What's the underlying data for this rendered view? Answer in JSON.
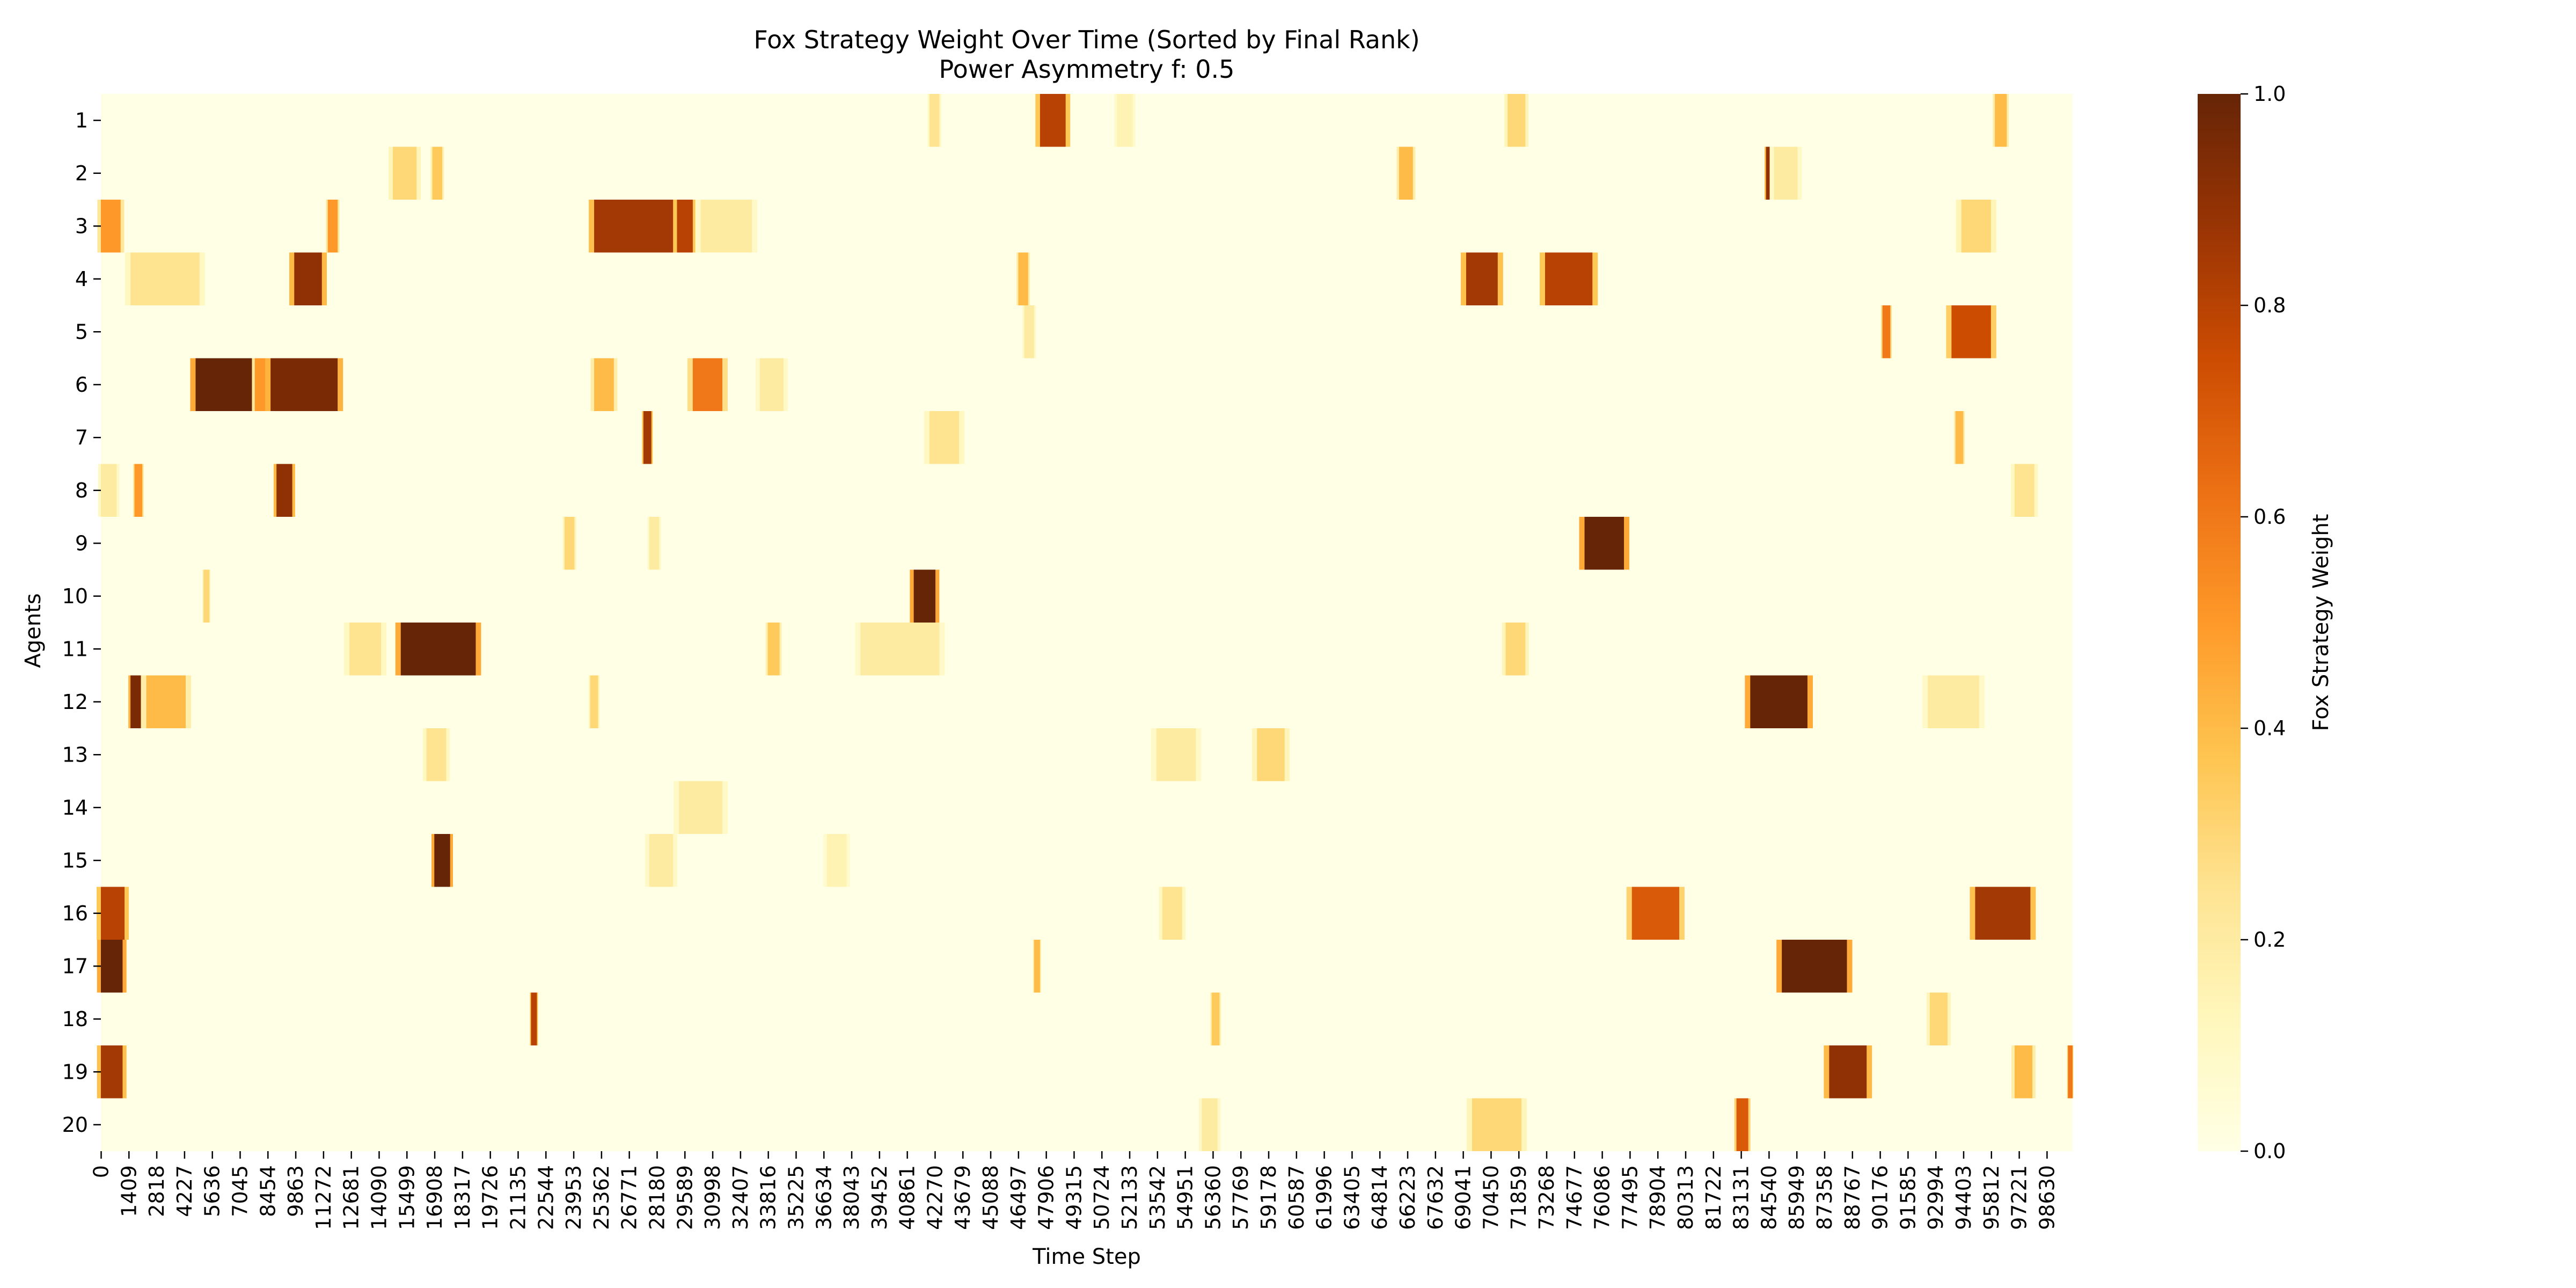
{
  "chart_data": {
    "type": "heatmap",
    "title": "Fox Strategy Weight Over Time (Sorted by Final Rank)",
    "subtitle": "Power Asymmetry f: 0.5",
    "xlabel": "Time Step",
    "ylabel": "Agents",
    "colorbar_label": "Fox Strategy Weight",
    "value_range": [
      0,
      1
    ],
    "colormap": [
      "#ffffe5",
      "#fff7bc",
      "#fee391",
      "#fec44f",
      "#fe9929",
      "#ec7014",
      "#cc4c02",
      "#993404",
      "#662506"
    ],
    "colorbar_ticks": [
      "0.0",
      "0.2",
      "0.4",
      "0.6",
      "0.8",
      "1.0"
    ],
    "x_range": [
      0,
      99939
    ],
    "x_ticks": [
      "0",
      "1409",
      "2818",
      "4227",
      "5636",
      "7045",
      "8454",
      "9863",
      "11272",
      "12681",
      "14090",
      "15499",
      "16908",
      "18317",
      "19726",
      "21135",
      "22544",
      "23953",
      "25362",
      "26771",
      "28180",
      "29589",
      "30998",
      "32407",
      "33816",
      "35225",
      "36634",
      "38043",
      "39452",
      "40861",
      "42270",
      "43679",
      "45088",
      "46497",
      "47906",
      "49315",
      "50724",
      "52133",
      "53542",
      "54951",
      "56360",
      "57769",
      "59178",
      "60587",
      "61996",
      "63405",
      "64814",
      "66223",
      "67632",
      "69041",
      "70450",
      "71859",
      "73268",
      "74677",
      "76086",
      "77495",
      "78904",
      "80313",
      "81722",
      "83131",
      "84540",
      "85949",
      "87358",
      "88767",
      "90176",
      "91585",
      "92994",
      "94403",
      "95812",
      "97221",
      "98630"
    ],
    "agents": [
      "1",
      "2",
      "3",
      "4",
      "5",
      "6",
      "7",
      "8",
      "9",
      "10",
      "11",
      "12",
      "13",
      "14",
      "15",
      "16",
      "17",
      "18",
      "19",
      "20"
    ],
    "high_intervals": [
      {
        "agent": "1",
        "from": 47600,
        "to": 48900,
        "peak": 0.8
      },
      {
        "agent": "1",
        "from": 42000,
        "to": 42500,
        "peak": 0.25
      },
      {
        "agent": "1",
        "from": 71300,
        "to": 72200,
        "peak": 0.3
      },
      {
        "agent": "1",
        "from": 96000,
        "to": 96600,
        "peak": 0.4
      },
      {
        "agent": "1",
        "from": 51500,
        "to": 52300,
        "peak": 0.15
      },
      {
        "agent": "2",
        "from": 14800,
        "to": 16000,
        "peak": 0.3
      },
      {
        "agent": "2",
        "from": 16800,
        "to": 17300,
        "peak": 0.35
      },
      {
        "agent": "2",
        "from": 65800,
        "to": 66500,
        "peak": 0.4
      },
      {
        "agent": "2",
        "from": 84400,
        "to": 84800,
        "peak": 0.9
      },
      {
        "agent": "2",
        "from": 84800,
        "to": 86000,
        "peak": 0.2
      },
      {
        "agent": "3",
        "from": 0,
        "to": 1000,
        "peak": 0.5
      },
      {
        "agent": "3",
        "from": 11500,
        "to": 12000,
        "peak": 0.5
      },
      {
        "agent": "3",
        "from": 25000,
        "to": 29000,
        "peak": 0.85
      },
      {
        "agent": "3",
        "from": 29200,
        "to": 30000,
        "peak": 0.8
      },
      {
        "agent": "3",
        "from": 30400,
        "to": 33000,
        "peak": 0.2
      },
      {
        "agent": "3",
        "from": 94300,
        "to": 95800,
        "peak": 0.3
      },
      {
        "agent": "4",
        "from": 1500,
        "to": 5000,
        "peak": 0.25
      },
      {
        "agent": "4",
        "from": 9800,
        "to": 11200,
        "peak": 0.9
      },
      {
        "agent": "4",
        "from": 46500,
        "to": 47000,
        "peak": 0.4
      },
      {
        "agent": "4",
        "from": 69200,
        "to": 70800,
        "peak": 0.85
      },
      {
        "agent": "4",
        "from": 73200,
        "to": 75600,
        "peak": 0.8
      },
      {
        "agent": "5",
        "from": 90300,
        "to": 90700,
        "peak": 0.6
      },
      {
        "agent": "5",
        "from": 93800,
        "to": 95800,
        "peak": 0.75
      },
      {
        "agent": "5",
        "from": 46800,
        "to": 47300,
        "peak": 0.2
      },
      {
        "agent": "6",
        "from": 4800,
        "to": 7800,
        "peak": 1.0
      },
      {
        "agent": "6",
        "from": 7800,
        "to": 8600,
        "peak": 0.5
      },
      {
        "agent": "6",
        "from": 8600,
        "to": 12000,
        "peak": 0.95
      },
      {
        "agent": "6",
        "from": 25000,
        "to": 26000,
        "peak": 0.4
      },
      {
        "agent": "6",
        "from": 30000,
        "to": 31500,
        "peak": 0.6
      },
      {
        "agent": "6",
        "from": 33400,
        "to": 34600,
        "peak": 0.2
      },
      {
        "agent": "7",
        "from": 27500,
        "to": 27900,
        "peak": 0.85
      },
      {
        "agent": "7",
        "from": 42000,
        "to": 43500,
        "peak": 0.25
      },
      {
        "agent": "7",
        "from": 94000,
        "to": 94400,
        "peak": 0.4
      },
      {
        "agent": "8",
        "from": 0,
        "to": 800,
        "peak": 0.2
      },
      {
        "agent": "8",
        "from": 1700,
        "to": 2100,
        "peak": 0.5
      },
      {
        "agent": "8",
        "from": 8900,
        "to": 9700,
        "peak": 0.9
      },
      {
        "agent": "8",
        "from": 97000,
        "to": 98000,
        "peak": 0.25
      },
      {
        "agent": "9",
        "from": 75200,
        "to": 77200,
        "peak": 1.0
      },
      {
        "agent": "9",
        "from": 23500,
        "to": 24000,
        "peak": 0.3
      },
      {
        "agent": "9",
        "from": 27800,
        "to": 28300,
        "peak": 0.2
      },
      {
        "agent": "10",
        "from": 41200,
        "to": 42300,
        "peak": 1.0
      },
      {
        "agent": "10",
        "from": 5200,
        "to": 5500,
        "peak": 0.3
      },
      {
        "agent": "11",
        "from": 15200,
        "to": 19000,
        "peak": 1.0
      },
      {
        "agent": "11",
        "from": 12600,
        "to": 14200,
        "peak": 0.25
      },
      {
        "agent": "11",
        "from": 33800,
        "to": 34400,
        "peak": 0.35
      },
      {
        "agent": "11",
        "from": 38500,
        "to": 42500,
        "peak": 0.2
      },
      {
        "agent": "11",
        "from": 71200,
        "to": 72200,
        "peak": 0.3
      },
      {
        "agent": "12",
        "from": 1500,
        "to": 2100,
        "peak": 0.95
      },
      {
        "agent": "12",
        "from": 2300,
        "to": 4300,
        "peak": 0.4
      },
      {
        "agent": "12",
        "from": 83600,
        "to": 86500,
        "peak": 1.0
      },
      {
        "agent": "12",
        "from": 24800,
        "to": 25200,
        "peak": 0.3
      },
      {
        "agent": "12",
        "from": 92600,
        "to": 95200,
        "peak": 0.2
      },
      {
        "agent": "13",
        "from": 53500,
        "to": 55500,
        "peak": 0.2
      },
      {
        "agent": "13",
        "from": 58600,
        "to": 60000,
        "peak": 0.3
      },
      {
        "agent": "13",
        "from": 16500,
        "to": 17500,
        "peak": 0.25
      },
      {
        "agent": "14",
        "from": 29300,
        "to": 31500,
        "peak": 0.2
      },
      {
        "agent": "15",
        "from": 16900,
        "to": 17700,
        "peak": 1.0
      },
      {
        "agent": "15",
        "from": 27800,
        "to": 29000,
        "peak": 0.2
      },
      {
        "agent": "15",
        "from": 36800,
        "to": 37800,
        "peak": 0.15
      },
      {
        "agent": "16",
        "from": 0,
        "to": 1200,
        "peak": 0.8
      },
      {
        "agent": "16",
        "from": 77600,
        "to": 80000,
        "peak": 0.7
      },
      {
        "agent": "16",
        "from": 95000,
        "to": 97800,
        "peak": 0.85
      },
      {
        "agent": "16",
        "from": 53800,
        "to": 54800,
        "peak": 0.25
      },
      {
        "agent": "17",
        "from": 0,
        "to": 1100,
        "peak": 1.0
      },
      {
        "agent": "17",
        "from": 85200,
        "to": 88500,
        "peak": 1.0
      },
      {
        "agent": "17",
        "from": 47300,
        "to": 47600,
        "peak": 0.4
      },
      {
        "agent": "18",
        "from": 21800,
        "to": 22100,
        "peak": 0.8
      },
      {
        "agent": "18",
        "from": 56300,
        "to": 56700,
        "peak": 0.35
      },
      {
        "agent": "18",
        "from": 92700,
        "to": 93600,
        "peak": 0.3
      },
      {
        "agent": "19",
        "from": 0,
        "to": 1100,
        "peak": 0.85
      },
      {
        "agent": "19",
        "from": 87600,
        "to": 89500,
        "peak": 0.9
      },
      {
        "agent": "19",
        "from": 97000,
        "to": 97900,
        "peak": 0.4
      },
      {
        "agent": "19",
        "from": 99700,
        "to": 99939,
        "peak": 0.6
      },
      {
        "agent": "20",
        "from": 82900,
        "to": 83500,
        "peak": 0.7
      },
      {
        "agent": "20",
        "from": 69500,
        "to": 72000,
        "peak": 0.3
      },
      {
        "agent": "20",
        "from": 55800,
        "to": 56600,
        "peak": 0.2
      }
    ]
  }
}
